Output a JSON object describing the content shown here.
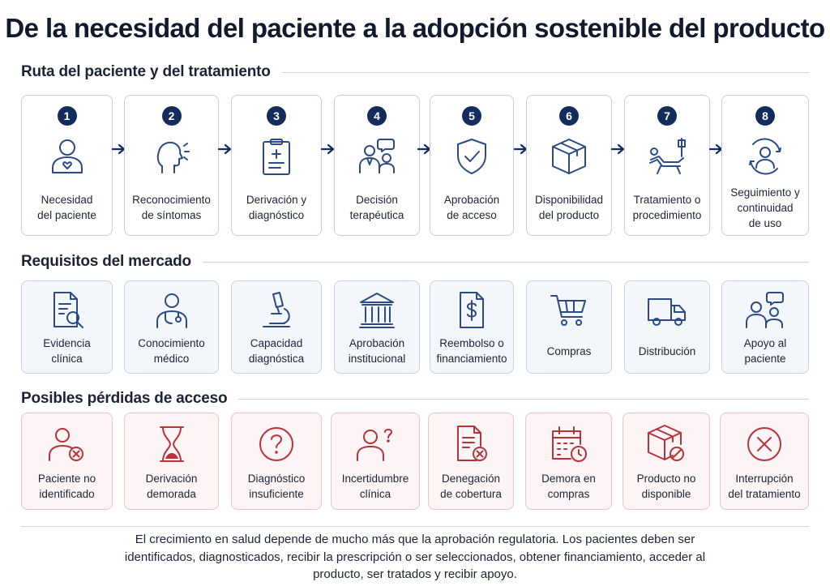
{
  "title": "De la necesidad del paciente a la adopción sostenible del producto",
  "sections": {
    "path": "Ruta del paciente y del tratamiento",
    "market": "Requisitos del mercado",
    "losses": "Posibles pérdidas de acceso"
  },
  "path_steps": [
    {
      "num": "1",
      "label": "Necesidad\ndel paciente",
      "icon": "patient-heart-icon"
    },
    {
      "num": "2",
      "label": "Reconocimiento\nde síntomas",
      "icon": "head-symptoms-icon"
    },
    {
      "num": "3",
      "label": "Derivación y\ndiagnóstico",
      "icon": "clipboard-medical-icon"
    },
    {
      "num": "4",
      "label": "Decisión\nterapéutica",
      "icon": "doctor-patient-consult-icon"
    },
    {
      "num": "5",
      "label": "Aprobación\nde acceso",
      "icon": "shield-check-icon"
    },
    {
      "num": "6",
      "label": "Disponibilidad\ndel producto",
      "icon": "box-icon"
    },
    {
      "num": "7",
      "label": "Tratamiento o\nprocedimiento",
      "icon": "treatment-chair-icon"
    },
    {
      "num": "8",
      "label": "Seguimiento y\ncontinuidad\nde uso",
      "icon": "person-cycle-icon"
    }
  ],
  "market_requirements": [
    {
      "label": "Evidencia\nclínica",
      "icon": "document-search-icon"
    },
    {
      "label": "Conocimiento\nmédico",
      "icon": "doctor-stethoscope-icon"
    },
    {
      "label": "Capacidad\ndiagnóstica",
      "icon": "microscope-icon"
    },
    {
      "label": "Aprobación\ninstitucional",
      "icon": "institution-building-icon"
    },
    {
      "label": "Reembolso o\nfinanciamiento",
      "icon": "document-dollar-icon"
    },
    {
      "label": "Compras",
      "icon": "shopping-cart-icon"
    },
    {
      "label": "Distribución",
      "icon": "delivery-truck-icon"
    },
    {
      "label": "Apoyo al\npaciente",
      "icon": "people-chat-icon"
    }
  ],
  "access_losses": [
    {
      "label": "Paciente no\nidentificado",
      "icon": "person-x-icon"
    },
    {
      "label": "Derivación\ndemorada",
      "icon": "hourglass-icon"
    },
    {
      "label": "Diagnóstico\ninsuficiente",
      "icon": "question-circle-icon"
    },
    {
      "label": "Incertidumbre\nclínica",
      "icon": "person-question-icon"
    },
    {
      "label": "Denegación\nde cobertura",
      "icon": "document-x-icon"
    },
    {
      "label": "Demora en\ncompras",
      "icon": "calendar-clock-icon"
    },
    {
      "label": "Producto no\ndisponible",
      "icon": "box-blocked-icon"
    },
    {
      "label": "Interrupción\ndel tratamiento",
      "icon": "x-circle-icon"
    }
  ],
  "footer": "El crecimiento en salud depende de mucho más que la aprobación regulatoria. Los pacientes deben ser identificados, diagnosticados, recibir la prescripción o ser seleccionados, obtener financiamiento, acceder al producto, ser tratados y recibir apoyo.",
  "colors": {
    "navy": "#142c5c",
    "blue_icon": "#2b4a86",
    "red_icon": "#b8323a"
  }
}
